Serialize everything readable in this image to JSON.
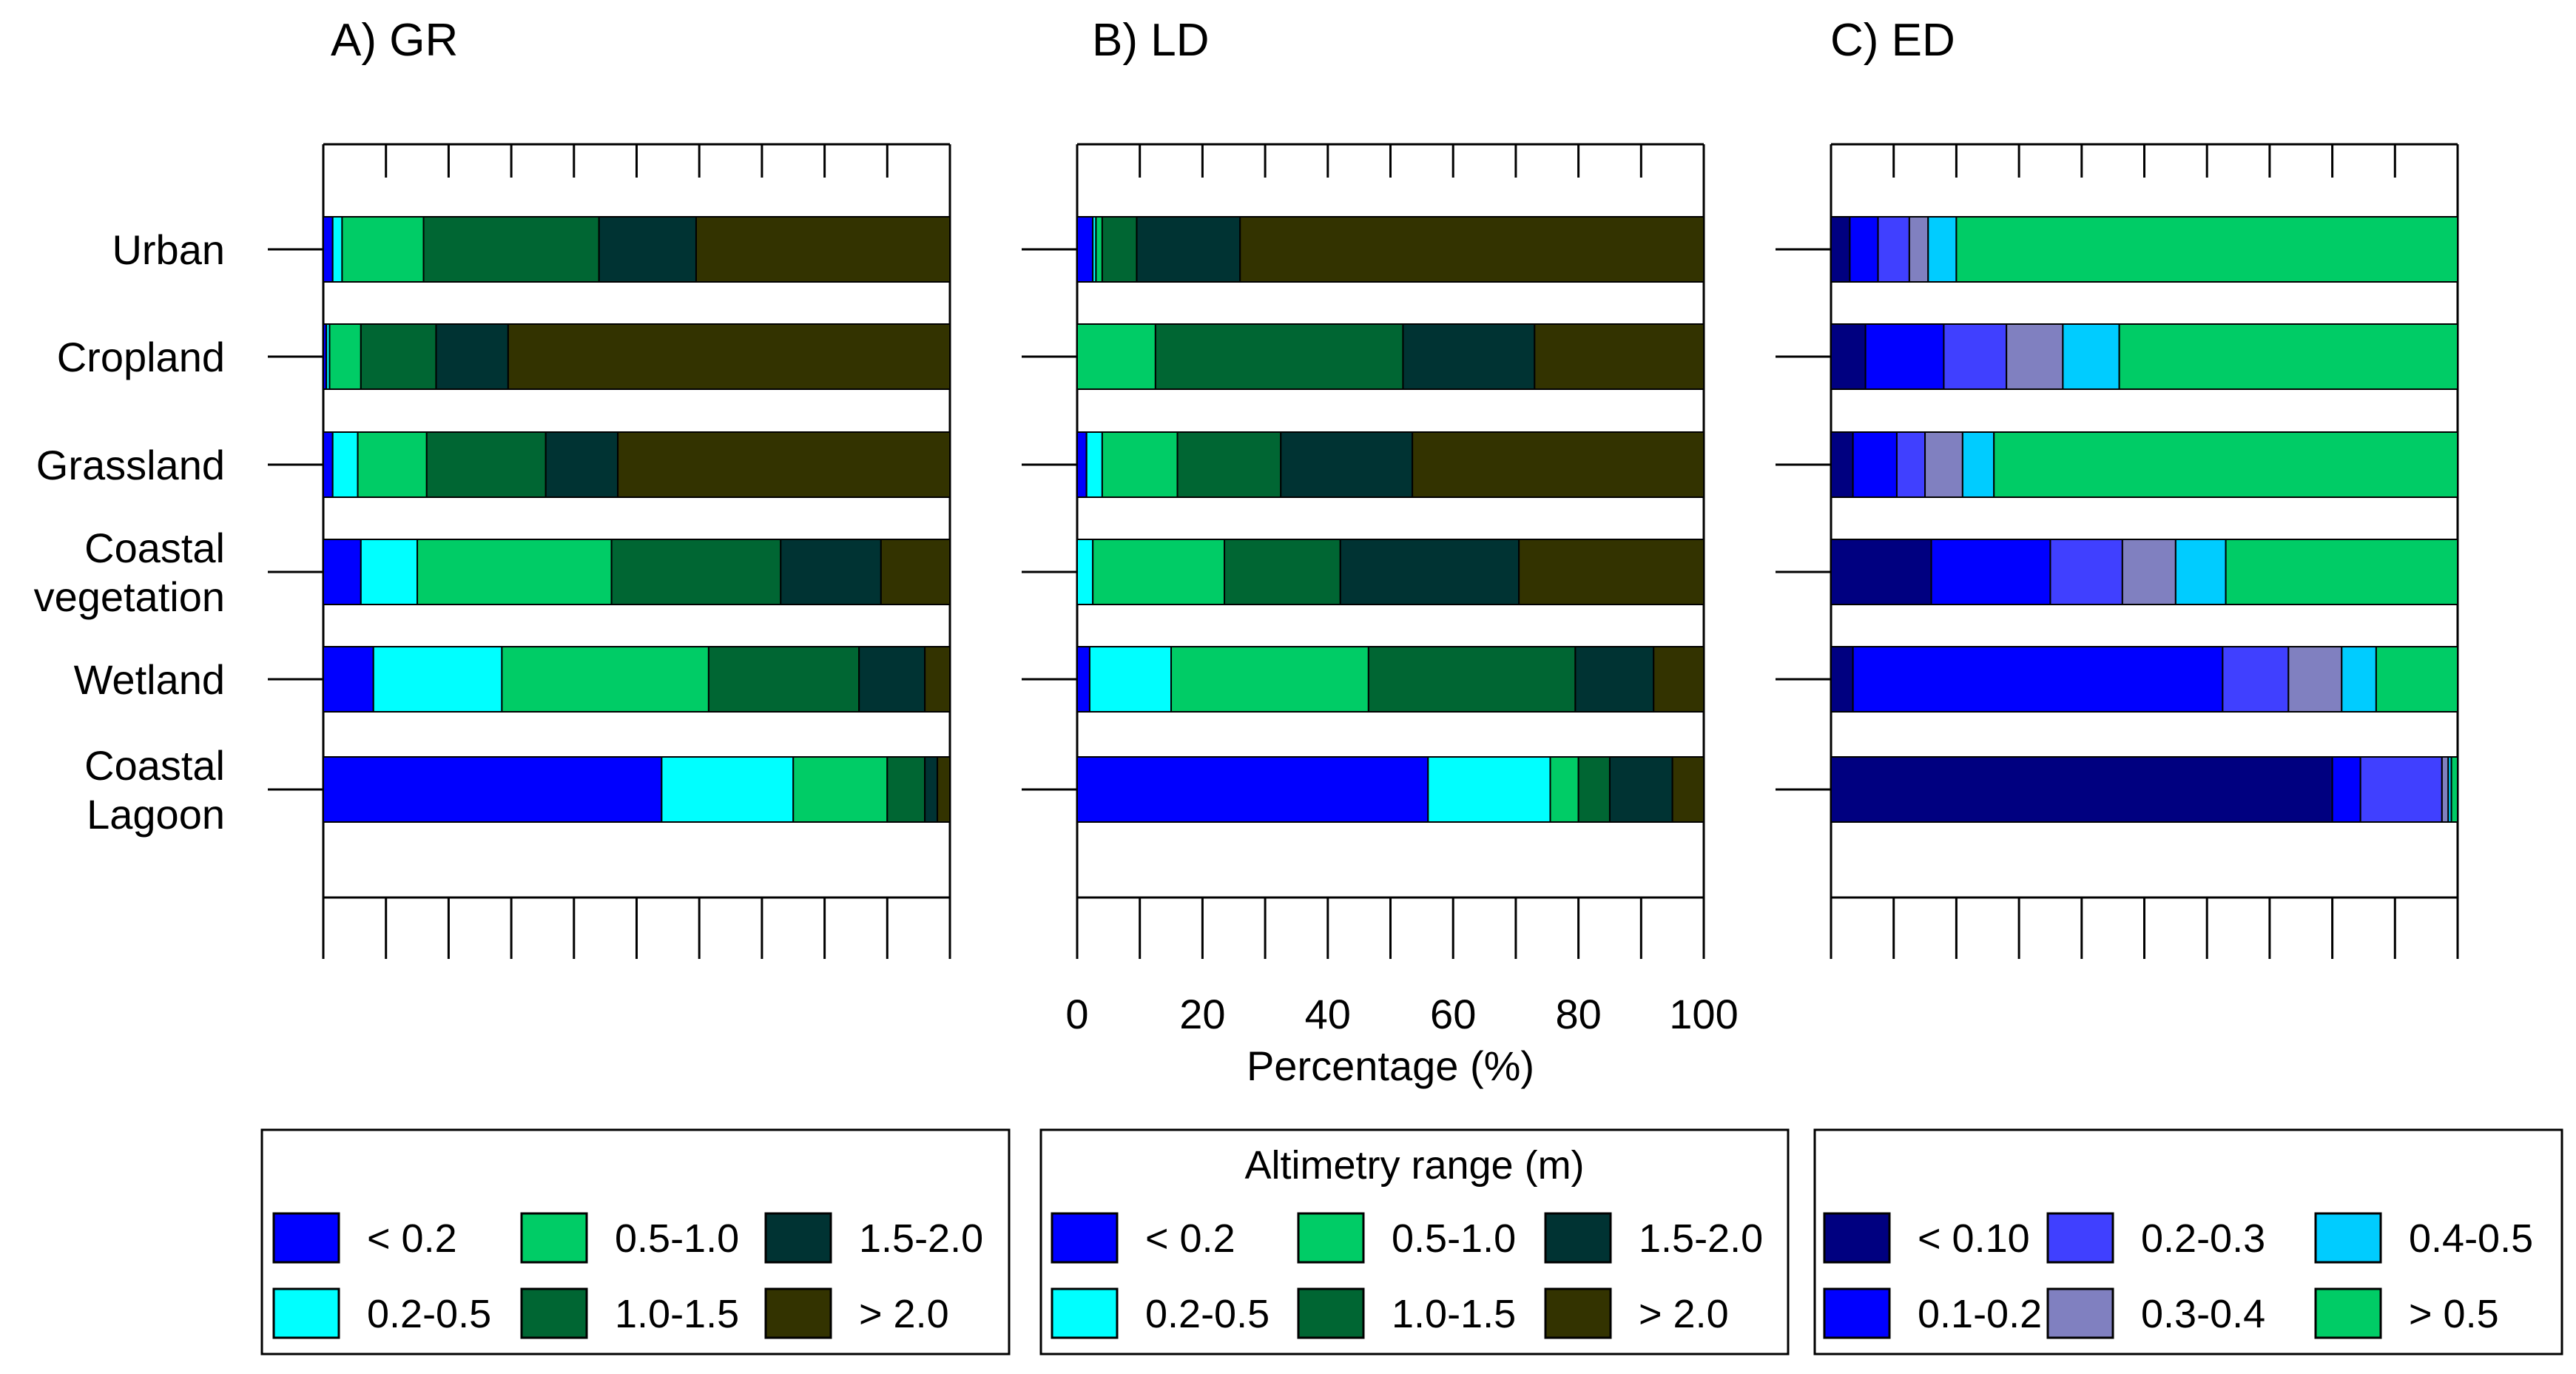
{
  "chart_data": [
    {
      "type": "bar",
      "orientation": "horizontal",
      "stacked": true,
      "title": "A) GR",
      "categories": [
        "Urban",
        "Cropland",
        "Grassland",
        "Coastal vegetation",
        "Wetland",
        "Coastal Lagoon"
      ],
      "category_lines": [
        [
          "Urban"
        ],
        [
          "Cropland"
        ],
        [
          "Grassland"
        ],
        [
          "Coastal",
          "vegetation"
        ],
        [
          "Wetland"
        ],
        [
          "Coastal",
          "Lagoon"
        ]
      ],
      "xlim": [
        0,
        100
      ],
      "xticks": [
        0,
        10,
        20,
        30,
        40,
        50,
        60,
        70,
        80,
        90,
        100
      ],
      "series": [
        {
          "name": "< 0.2",
          "color": "#0000FF",
          "values": [
            1.5,
            0.5,
            1.5,
            6,
            8,
            54
          ]
        },
        {
          "name": "0.2-0.5",
          "color": "#00FFFF",
          "values": [
            1.5,
            0.5,
            4,
            9,
            20.5,
            21
          ]
        },
        {
          "name": "0.5-1.0",
          "color": "#00CC66",
          "values": [
            13,
            5,
            11,
            31,
            33,
            15
          ]
        },
        {
          "name": "1.0-1.5",
          "color": "#006633",
          "values": [
            28,
            12,
            19,
            27,
            24,
            6
          ]
        },
        {
          "name": "1.5-2.0",
          "color": "#003333",
          "values": [
            15.5,
            11.5,
            11.5,
            16,
            10.5,
            2
          ]
        },
        {
          "name": "> 2.0",
          "color": "#333300",
          "values": [
            40.5,
            70.5,
            53,
            11,
            4,
            2
          ]
        }
      ],
      "legend": {
        "title": "",
        "items": [
          {
            "label": "< 0.2",
            "color": "#0000FF"
          },
          {
            "label": "0.5-1.0",
            "color": "#00CC66"
          },
          {
            "label": "1.5-2.0",
            "color": "#003333"
          },
          {
            "label": "0.2-0.5",
            "color": "#00FFFF"
          },
          {
            "label": "1.0-1.5",
            "color": "#006633"
          },
          {
            "label": "> 2.0",
            "color": "#333300"
          }
        ]
      }
    },
    {
      "type": "bar",
      "orientation": "horizontal",
      "stacked": true,
      "title": "B) LD",
      "categories": [
        "Urban",
        "Cropland",
        "Grassland",
        "Coastal vegetation",
        "Wetland",
        "Coastal Lagoon"
      ],
      "xlabel": "Percentage (%)",
      "xlim": [
        0,
        100
      ],
      "xticks": [
        0,
        10,
        20,
        30,
        40,
        50,
        60,
        70,
        80,
        90,
        100
      ],
      "xticklabels": [
        "0",
        "20",
        "40",
        "60",
        "80",
        "100"
      ],
      "xticklabel_values": [
        0,
        20,
        40,
        60,
        80,
        100
      ],
      "series": [
        {
          "name": "< 0.2",
          "color": "#0000FF",
          "values": [
            2.5,
            0,
            1.5,
            0,
            2,
            56
          ]
        },
        {
          "name": "0.2-0.5",
          "color": "#00FFFF",
          "values": [
            0.5,
            0,
            2.5,
            2.5,
            13,
            19.5
          ]
        },
        {
          "name": "0.5-1.0",
          "color": "#00CC66",
          "values": [
            1,
            12.5,
            12,
            21,
            31.5,
            4.5
          ]
        },
        {
          "name": "1.0-1.5",
          "color": "#006633",
          "values": [
            5.5,
            39.5,
            16.5,
            18.5,
            33,
            5
          ]
        },
        {
          "name": "1.5-2.0",
          "color": "#003333",
          "values": [
            16.5,
            21,
            21,
            28.5,
            12.5,
            10
          ]
        },
        {
          "name": "> 2.0",
          "color": "#333300",
          "values": [
            74,
            27,
            46.5,
            29.5,
            8,
            5
          ]
        }
      ],
      "legend": {
        "title": "Altimetry range (m)",
        "items": [
          {
            "label": "< 0.2",
            "color": "#0000FF"
          },
          {
            "label": "0.5-1.0",
            "color": "#00CC66"
          },
          {
            "label": "1.5-2.0",
            "color": "#003333"
          },
          {
            "label": "0.2-0.5",
            "color": "#00FFFF"
          },
          {
            "label": "1.0-1.5",
            "color": "#006633"
          },
          {
            "label": "> 2.0",
            "color": "#333300"
          }
        ]
      }
    },
    {
      "type": "bar",
      "orientation": "horizontal",
      "stacked": true,
      "title": "C) ED",
      "categories": [
        "Urban",
        "Cropland",
        "Grassland",
        "Coastal vegetation",
        "Wetland",
        "Coastal Lagoon"
      ],
      "xlim": [
        0,
        100
      ],
      "xticks": [
        0,
        10,
        20,
        30,
        40,
        50,
        60,
        70,
        80,
        90,
        100
      ],
      "series": [
        {
          "name": "< 0.10",
          "color": "#000080",
          "values": [
            3,
            5.5,
            3.5,
            16,
            3.5,
            80
          ]
        },
        {
          "name": "0.1-0.2",
          "color": "#0000FF",
          "values": [
            4.5,
            12.5,
            7,
            19,
            59,
            4.5
          ]
        },
        {
          "name": "0.2-0.3",
          "color": "#4040FF",
          "values": [
            5,
            10,
            4.5,
            11.5,
            10.5,
            13
          ]
        },
        {
          "name": "0.3-0.4",
          "color": "#8080C0",
          "values": [
            3,
            9,
            6,
            8.5,
            8.5,
            1
          ]
        },
        {
          "name": "0.4-0.5",
          "color": "#00CCFF",
          "values": [
            4.5,
            9,
            5,
            8,
            5.5,
            0.5
          ]
        },
        {
          "name": "> 0.5",
          "color": "#00CC66",
          "values": [
            80,
            54,
            74,
            37,
            13,
            1
          ]
        }
      ],
      "legend": {
        "title": "",
        "items": [
          {
            "label": "< 0.10",
            "color": "#000080"
          },
          {
            "label": "0.2-0.3",
            "color": "#4040FF"
          },
          {
            "label": "0.4-0.5",
            "color": "#00CCFF"
          },
          {
            "label": "0.1-0.2",
            "color": "#0000FF"
          },
          {
            "label": "0.3-0.4",
            "color": "#8080C0"
          },
          {
            "label": "> 0.5",
            "color": "#00CC66"
          }
        ]
      }
    }
  ]
}
